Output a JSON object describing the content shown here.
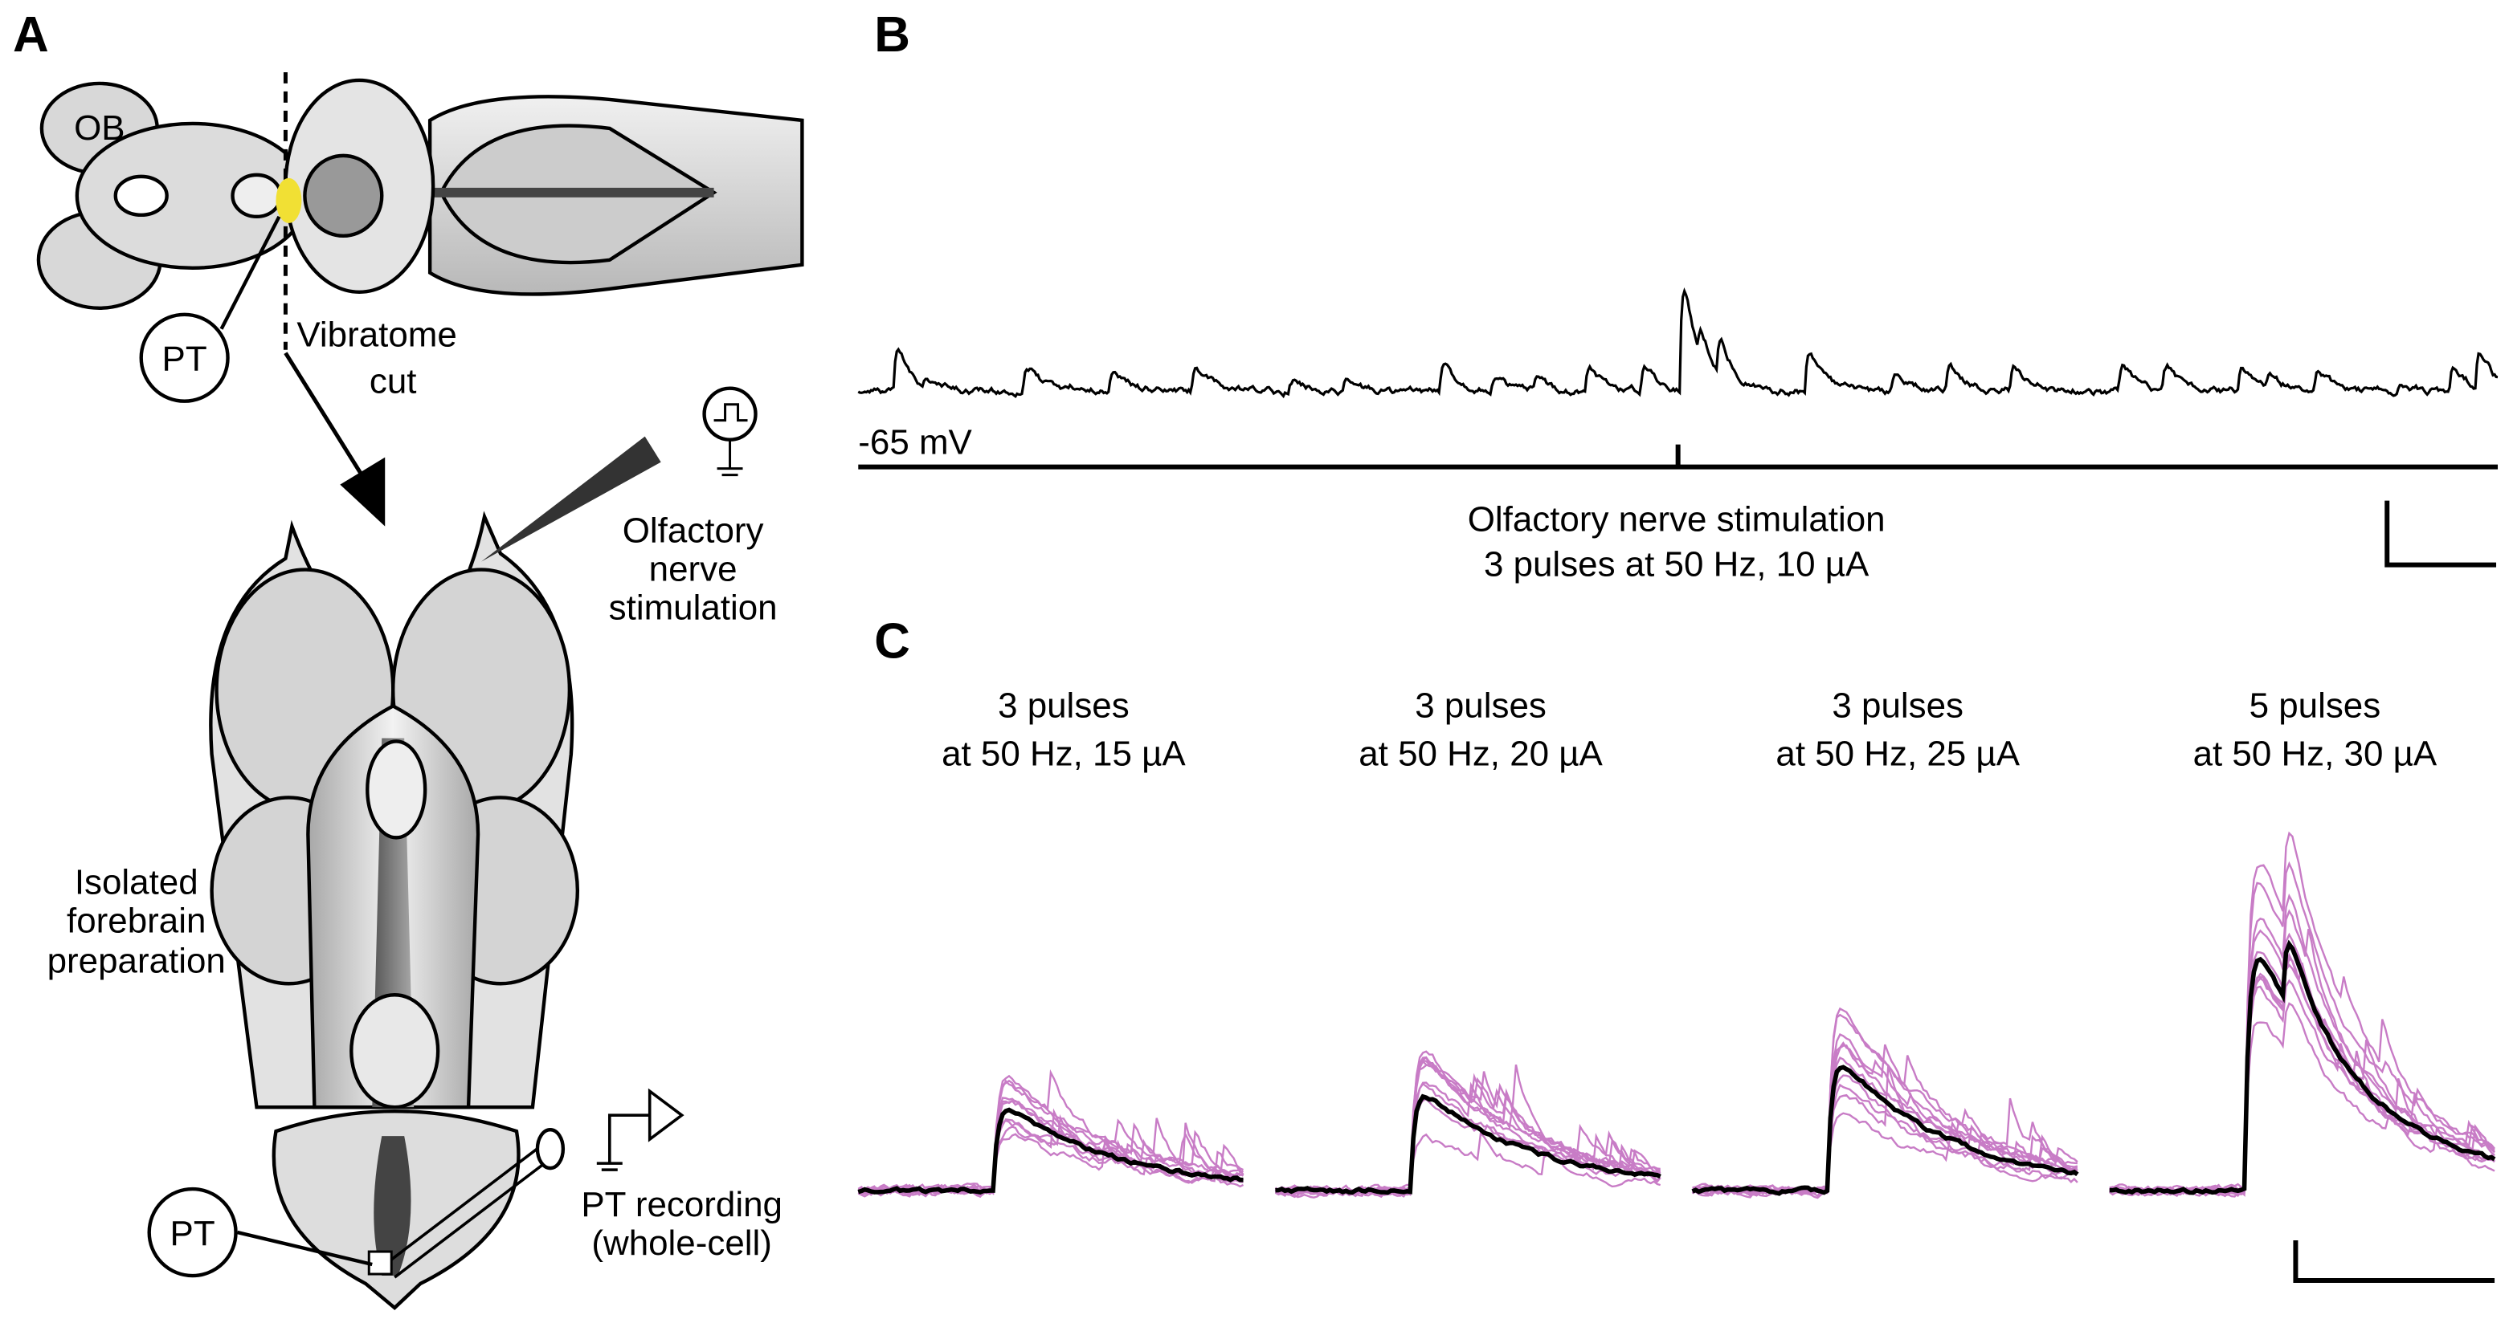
{
  "panel_labels": [
    "A",
    "B",
    "C"
  ],
  "panel_a": {
    "ob": "OB",
    "pt_top": "PT",
    "vibratome_cut": [
      "Vibratome",
      "cut"
    ],
    "stimulation": [
      "Olfactory",
      "nerve",
      "stimulation"
    ],
    "preparation": [
      "Isolated",
      "forebrain",
      "preparation"
    ],
    "pt_bottom": "PT",
    "recording": [
      "PT recording",
      "(whole-cell)"
    ]
  },
  "panel_b": {
    "baseline": "-65 mV",
    "stimulus": [
      "Olfactory nerve stimulation",
      "3 pulses at 50 Hz, 10 µA"
    ]
  },
  "panel_c": {
    "conditions": [
      [
        "3 pulses",
        "at 50 Hz, 15 µA"
      ],
      [
        "3 pulses",
        "at 50 Hz, 20 µA"
      ],
      [
        "3 pulses",
        "at 50 Hz, 25 µA"
      ],
      [
        "5 pulses",
        "at 50 Hz, 30 µA"
      ]
    ]
  }
}
